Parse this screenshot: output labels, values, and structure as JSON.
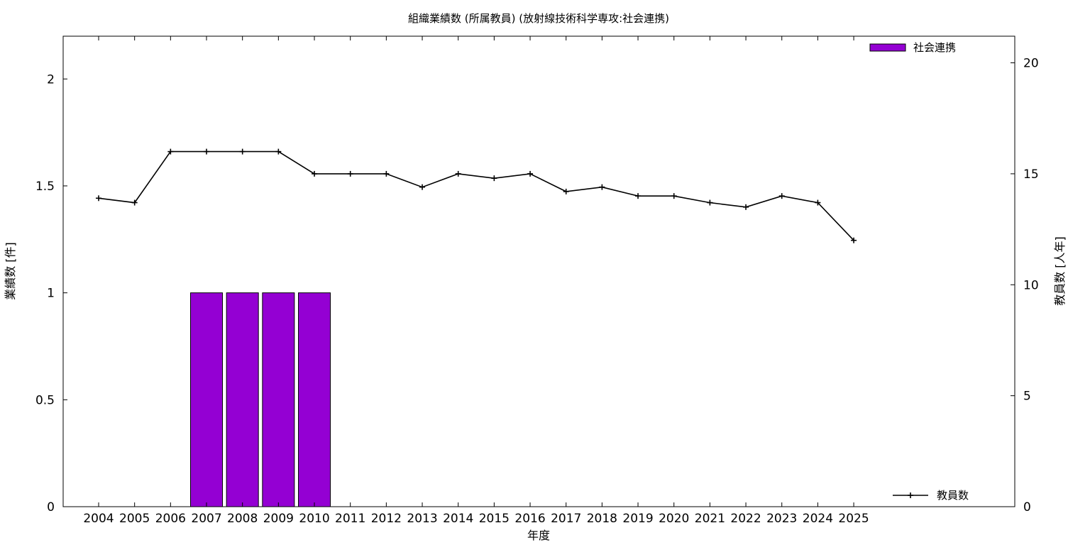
{
  "chart_data": {
    "type": "bar",
    "title": "組織業績数 (所属教員) (放射線技術科学専攻:社会連携)",
    "xlabel": "年度",
    "ylabel": "業績数 [件]",
    "y2label": "教員数 [人年]",
    "categories": [
      "2004",
      "2005",
      "2006",
      "2007",
      "2008",
      "2009",
      "2010",
      "2011",
      "2012",
      "2013",
      "2014",
      "2015",
      "2016",
      "2017",
      "2018",
      "2019",
      "2020",
      "2021",
      "2022",
      "2023",
      "2024",
      "2025"
    ],
    "ylim": [
      0,
      2.2
    ],
    "y2lim": [
      0,
      21.2
    ],
    "yticks": [
      "0",
      "0.5",
      "1",
      "1.5",
      "2"
    ],
    "y2ticks": [
      "0",
      "5",
      "10",
      "15",
      "20"
    ],
    "grid": false,
    "series": [
      {
        "name": "社会連携",
        "type": "bar",
        "axis": "left",
        "color": "#9400d3",
        "values": [
          0,
          0,
          0,
          1,
          1,
          1,
          1,
          0,
          0,
          0,
          0,
          0,
          0,
          0,
          0,
          0,
          0,
          0,
          0,
          0,
          0,
          0
        ],
        "legend_position": "top-right"
      },
      {
        "name": "教員数",
        "type": "line",
        "axis": "right",
        "color": "#000000",
        "marker": "plus",
        "values": [
          13.9,
          13.7,
          16.0,
          16.0,
          16.0,
          16.0,
          15.0,
          15.0,
          15.0,
          14.4,
          15.0,
          14.8,
          15.0,
          14.2,
          14.4,
          14.0,
          14.0,
          13.7,
          13.5,
          14.0,
          13.7,
          12.0
        ],
        "legend_position": "bottom-right"
      }
    ]
  }
}
